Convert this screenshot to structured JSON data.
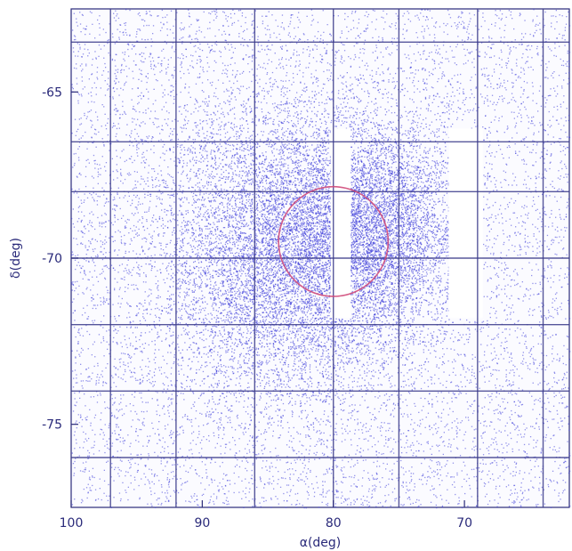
{
  "chart_data": {
    "type": "scatter",
    "title": "",
    "xlabel": "α(deg)",
    "ylabel": "δ(deg)",
    "xlim": [
      100,
      62
    ],
    "ylim": [
      -77.5,
      -62.5
    ],
    "x_ticks": [
      {
        "value": 100,
        "label": "100"
      },
      {
        "value": 90,
        "label": "90"
      },
      {
        "value": 80,
        "label": "80"
      },
      {
        "value": 70,
        "label": "70"
      }
    ],
    "y_ticks": [
      {
        "value": -65,
        "label": "-65"
      },
      {
        "value": -70,
        "label": "-70"
      },
      {
        "value": -75,
        "label": "-75"
      }
    ],
    "grid": true,
    "grid_lines_x": [
      97,
      92,
      86,
      80,
      75,
      69,
      64
    ],
    "grid_lines_y": [
      -63.5,
      -66.5,
      -68,
      -70,
      -72,
      -74,
      -76
    ],
    "density_peaks": [
      {
        "x": 84,
        "y": -69.8,
        "sigma_x": 4.5,
        "sigma_y": 2.2,
        "weight": 1.0
      },
      {
        "x": 77,
        "y": -69.2,
        "sigma_x": 3.5,
        "sigma_y": 1.6,
        "weight": 0.7
      }
    ],
    "circle": {
      "center_x": 80,
      "center_y": -69.5,
      "radius_deg": 3.8,
      "color": "#d04a7a"
    },
    "gaps": [
      {
        "x_range": [
          80.2,
          78.7
        ],
        "y_range": [
          -66.1,
          -71.8
        ]
      },
      {
        "x_range": [
          71.2,
          68.6
        ],
        "y_range": [
          -66.1,
          -71.8
        ]
      }
    ],
    "point_color": "#3a3ad8",
    "grid_color": "#3a3a8a",
    "axis_color": "#2a2a7a"
  }
}
